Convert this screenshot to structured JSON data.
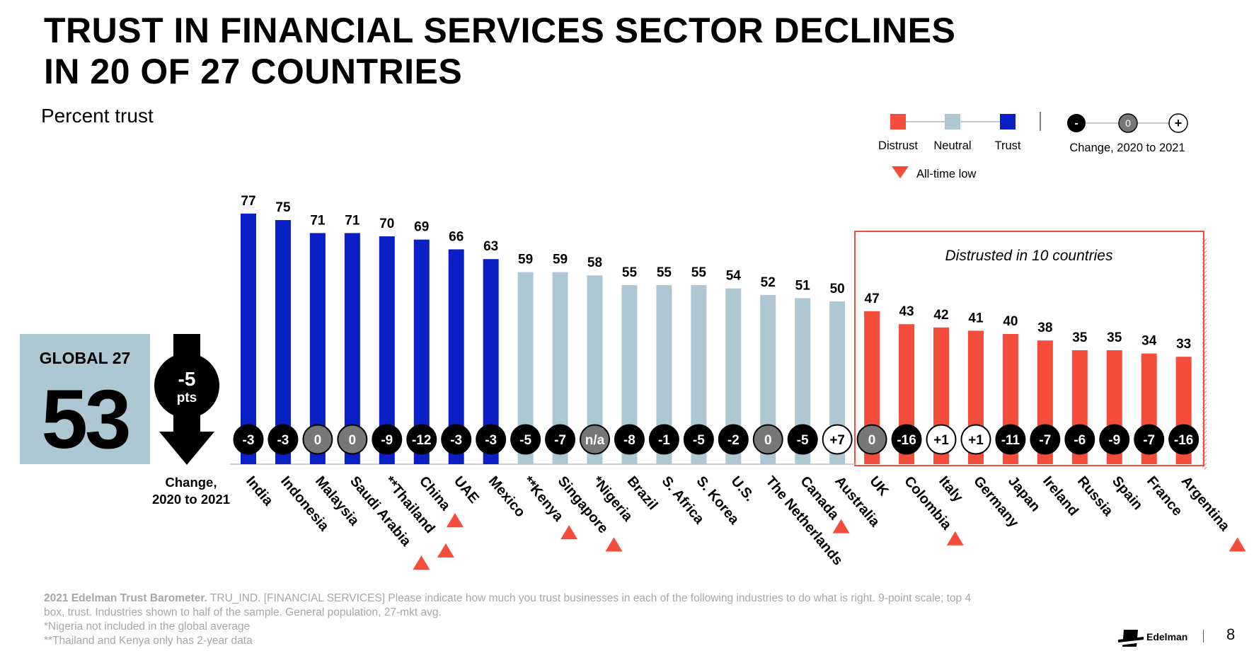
{
  "title_line1": "TRUST IN FINANCIAL SERVICES SECTOR DECLINES",
  "title_line2": "IN 20 OF 27 COUNTRIES",
  "subtitle": "Percent trust",
  "legend": {
    "distrust": "Distrust",
    "neutral": "Neutral",
    "trust": "Trust",
    "all_time_low": "All-time low",
    "change_label": "Change, 2020 to 2021",
    "minus_symbol": "-",
    "zero_symbol": "0",
    "plus_symbol": "+"
  },
  "global": {
    "label": "GLOBAL 27",
    "value": "53",
    "change": "-5",
    "change_unit": "pts",
    "change_caption_1": "Change,",
    "change_caption_2": "2020 to 2021"
  },
  "distrusted_box_label": "Distrusted in 10 countries",
  "colors": {
    "trust": "#0a1fc4",
    "neutral": "#aec8d3",
    "distrust": "#f44d3c",
    "global_box": "#aec8d3",
    "neg_badge": "#000000",
    "zero_badge": "#777777",
    "pos_badge": "#ffffff"
  },
  "chart_data": {
    "type": "bar",
    "ylabel": "Percent trust",
    "categories": [
      "India",
      "Indonesia",
      "Malaysia",
      "Saudi Arabia",
      "**Thailand",
      "China",
      "UAE",
      "Mexico",
      "**Kenya",
      "Singapore",
      "*Nigeria",
      "Brazil",
      "S. Africa",
      "S. Korea",
      "U.S.",
      "The Netherlands",
      "Canada",
      "Australia",
      "UK",
      "Colombia",
      "Italy",
      "Germany",
      "Japan",
      "Ireland",
      "Russia",
      "Spain",
      "France",
      "Argentina"
    ],
    "values": [
      77,
      75,
      71,
      71,
      70,
      69,
      66,
      63,
      59,
      59,
      58,
      55,
      55,
      55,
      54,
      52,
      51,
      50,
      47,
      43,
      42,
      41,
      40,
      38,
      35,
      35,
      34,
      33
    ],
    "categories_class": [
      "trust",
      "trust",
      "trust",
      "trust",
      "trust",
      "trust",
      "trust",
      "trust",
      "neutral",
      "neutral",
      "neutral",
      "neutral",
      "neutral",
      "neutral",
      "neutral",
      "neutral",
      "neutral",
      "neutral",
      "distrust",
      "distrust",
      "distrust",
      "distrust",
      "distrust",
      "distrust",
      "distrust",
      "distrust",
      "distrust",
      "distrust"
    ],
    "change_labels": [
      "-3",
      "-3",
      "0",
      "0",
      "-9",
      "-12",
      "-3",
      "-3",
      "-5",
      "-7",
      "n/a",
      "-8",
      "-1",
      "-5",
      "-2",
      "0",
      "-5",
      "+7",
      "0",
      "-16",
      "+1",
      "+1",
      "-11",
      "-7",
      "-6",
      "-9",
      "-7",
      "-16"
    ],
    "all_time_low": [
      "Saudi Arabia",
      "**Thailand",
      "China",
      "**Kenya",
      "Singapore",
      "Canada",
      "Colombia",
      "Argentina"
    ],
    "ylim": [
      0,
      100
    ]
  },
  "footer": {
    "source_bold": "2021 Edelman Trust Barometer.",
    "source_text": " TRU_IND. [FINANCIAL SERVICES] Please indicate how much you trust businesses in each of the following industries to do what is right. 9-point scale; top 4",
    "line2": "box, trust. Industries shown to half of the sample. General population, 27-mkt avg.",
    "line3": "*Nigeria not included in the global average",
    "line4": "**Thailand and Kenya only has 2-year data"
  },
  "brand": "Edelman",
  "page_number": "8"
}
